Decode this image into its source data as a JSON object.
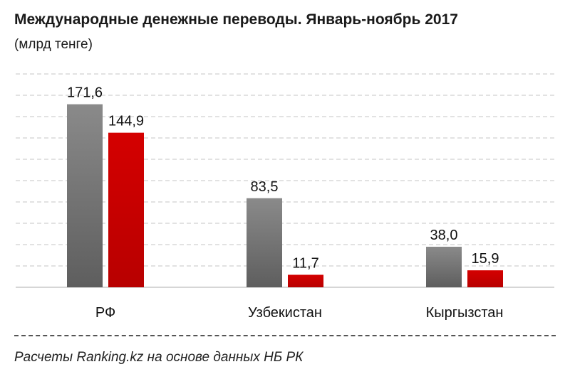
{
  "title": "Международные денежные переводы. Январь-ноябрь 2017",
  "subtitle": "(млрд тенге)",
  "source": "Расчеты Ranking.kz на основе данных  НБ РК",
  "colors": {
    "series_grey": "#7a7a7a",
    "series_red": "#cc0000",
    "grid": "#d9d9d9",
    "baseline": "#c8c8c8"
  },
  "chart_data": {
    "type": "bar",
    "title": "Международные денежные переводы. Январь-ноябрь 2017",
    "subtitle": "(млрд тенге)",
    "categories": [
      "РФ",
      "Узбекистан",
      "Кыргызстан"
    ],
    "series": [
      {
        "values": [
          171.6,
          83.5,
          38.0
        ],
        "labels": [
          "171,6",
          "83,5",
          "38,0"
        ],
        "color": "#7a7a7a"
      },
      {
        "values": [
          144.9,
          11.7,
          15.9
        ],
        "labels": [
          "144,9",
          "11,7",
          "15,9"
        ],
        "color": "#cc0000"
      }
    ],
    "ylim": [
      0,
      200
    ],
    "grid": true,
    "legend": "none"
  }
}
